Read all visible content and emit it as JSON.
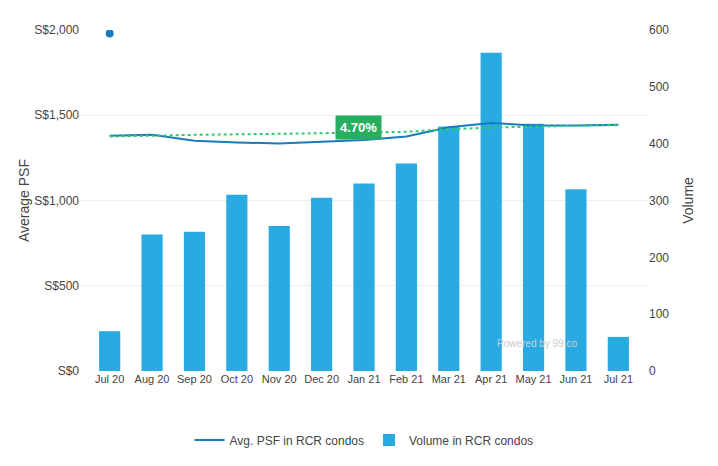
{
  "chart_data": {
    "type": "bar",
    "categories": [
      "Jul 20",
      "Aug 20",
      "Sep 20",
      "Oct 20",
      "Nov 20",
      "Dec 20",
      "Jan 21",
      "Feb 21",
      "Mar 21",
      "Apr 21",
      "May 21",
      "Jun 21",
      "Jul 21"
    ],
    "series": [
      {
        "name": "Volume in RCR condos",
        "type": "bar",
        "axis": "y2",
        "color": "#29abe2",
        "values": [
          70,
          240,
          245,
          310,
          255,
          305,
          330,
          365,
          430,
          560,
          435,
          320,
          60
        ]
      },
      {
        "name": "Avg. PSF in RCR condos",
        "type": "line",
        "color": "#1a7abf",
        "line_style": "solid",
        "values": [
          1380,
          1385,
          1350,
          1340,
          1335,
          1345,
          1355,
          1375,
          1430,
          1455,
          1440,
          1440,
          1445
        ]
      },
      {
        "type": "scatter",
        "color": "#1a7abf",
        "marker": "circle",
        "values": [
          1980,
          null,
          null,
          null,
          null,
          null,
          null,
          null,
          null,
          null,
          null,
          null,
          null
        ]
      },
      {
        "type": "line",
        "color": "#2ecc71",
        "line_style": "dotted",
        "values": [
          1375,
          1382,
          1385,
          1388,
          1390,
          1393,
          1398,
          1403,
          1418,
          1428,
          1435,
          1438,
          1442
        ]
      }
    ],
    "ylabel": "Average PSF",
    "y2label": "Volume",
    "ylim": [
      0,
      2000
    ],
    "yticks": [
      {
        "value": 0,
        "label": "S$0"
      },
      {
        "value": 500,
        "label": "S$500"
      },
      {
        "value": 1000,
        "label": "S$1,000"
      },
      {
        "value": 1500,
        "label": "S$1,500"
      },
      {
        "value": 2000,
        "label": "S$2,000"
      }
    ],
    "y2lim": [
      0,
      600
    ],
    "y2ticks": [
      0,
      100,
      200,
      300,
      400,
      500,
      600
    ],
    "annotations": [
      {
        "text": "4.70%",
        "color": "#27ae60"
      },
      {
        "text": "Powered by 99.co",
        "color": "#cccccc"
      }
    ],
    "grid": true,
    "legend": "bottom"
  }
}
